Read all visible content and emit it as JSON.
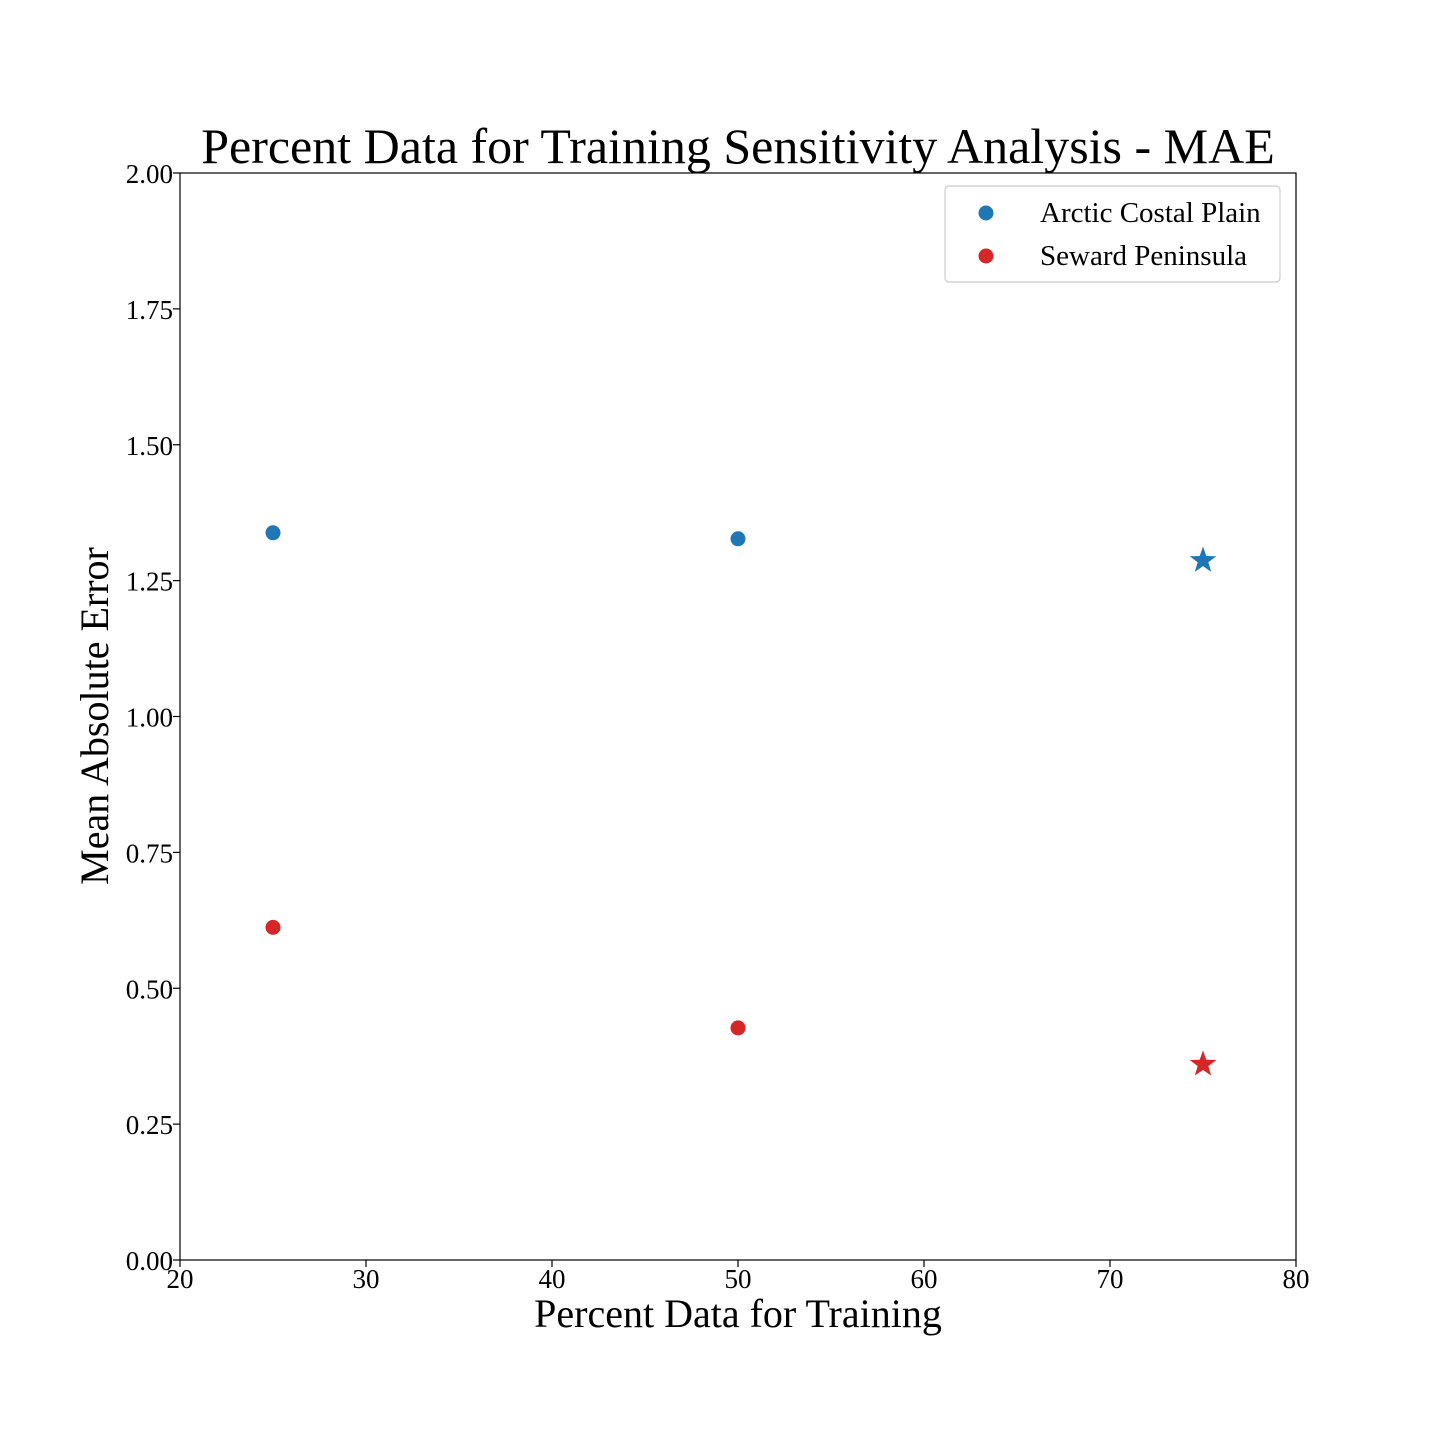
{
  "chart_data": {
    "type": "scatter",
    "title": "Percent Data for Training Sensitivity Analysis - MAE",
    "xlabel": "Percent Data for Training",
    "ylabel": "Mean Absolute Error",
    "xlim": [
      20,
      80
    ],
    "ylim": [
      0,
      2
    ],
    "xticks": [
      "20",
      "30",
      "40",
      "50",
      "60",
      "70",
      "80"
    ],
    "yticks": [
      "0.00",
      "0.25",
      "0.50",
      "0.75",
      "1.00",
      "1.25",
      "1.50",
      "1.75",
      "2.00"
    ],
    "grid": false,
    "legend_position": "top-right",
    "series": [
      {
        "name": "Arctic Costal Plain",
        "color": "#1f77b4",
        "x": [
          25,
          50,
          75
        ],
        "y": [
          1.338,
          1.327,
          1.287
        ],
        "markers": [
          "circle",
          "circle",
          "star"
        ]
      },
      {
        "name": "Seward Peninsula",
        "color": "#d62728",
        "x": [
          25,
          50,
          75
        ],
        "y": [
          0.612,
          0.427,
          0.36
        ],
        "markers": [
          "circle",
          "circle",
          "star"
        ]
      }
    ]
  }
}
